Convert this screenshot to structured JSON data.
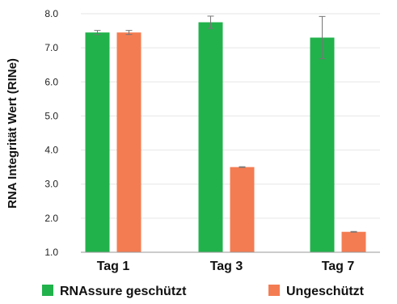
{
  "chart_data": {
    "type": "bar",
    "title": "",
    "xlabel": "",
    "ylabel": "RNA Integrität Wert (RINe)",
    "categories": [
      "Tag 1",
      "Tag 3",
      "Tag 7"
    ],
    "series": [
      {
        "name": "RNAssure geschützt",
        "color": "#22b24c",
        "values": [
          7.45,
          7.75,
          7.3
        ],
        "errors": [
          0.06,
          0.18,
          0.62
        ]
      },
      {
        "name": "Ungeschützt",
        "color": "#f47c52",
        "values": [
          7.45,
          3.5,
          1.6
        ],
        "errors": [
          0.06,
          0.01,
          0.01
        ]
      }
    ],
    "ylim": [
      1.0,
      8.0
    ],
    "yticks": [
      "1.0",
      "2.0",
      "3.0",
      "4.0",
      "5.0",
      "6.0",
      "7.0",
      "8.0"
    ],
    "grid": true,
    "legend_position": "bottom"
  }
}
